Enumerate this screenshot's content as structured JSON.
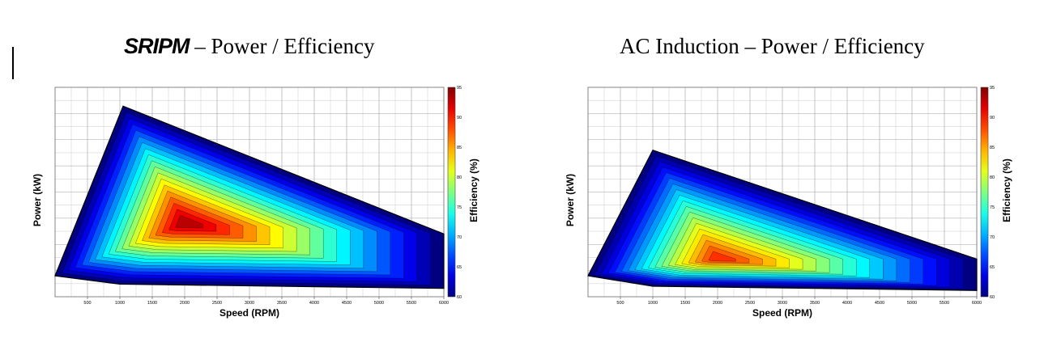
{
  "titles": {
    "left_brand": "SRIPM",
    "left_rest": " – Power / Efficiency",
    "right": "AC Induction – Power / Efficiency"
  },
  "colors": {
    "low": "#00007f",
    "mid": "#9fe76e",
    "high": "#ff2000",
    "grid": "#888888"
  },
  "chart_data": [
    {
      "type": "heatmap",
      "name": "SRIPM",
      "xlabel": "Speed (RPM)",
      "ylabel": "Power (kW)",
      "colorbar_label": "Efficiency (%)",
      "xlim": [
        0,
        6000
      ],
      "x_ticks": [
        "500",
        "1000",
        "1500",
        "2000",
        "2500",
        "3000",
        "3500",
        "4000",
        "4500",
        "5000",
        "5500",
        "6000"
      ],
      "colorbar_ticks": [
        "95",
        "90",
        "85",
        "80",
        "75",
        "70",
        "65",
        "60"
      ],
      "clim": [
        60,
        95
      ],
      "envelope": [
        [
          0,
          0.1
        ],
        [
          1050,
          0.91
        ],
        [
          6000,
          0.3
        ],
        [
          6000,
          0.04
        ],
        [
          1000,
          0.06
        ]
      ],
      "peak_efficiency": 93,
      "peak_location": {
        "speed": 2000,
        "power_fraction": 0.35
      }
    },
    {
      "type": "heatmap",
      "name": "AC Induction",
      "xlabel": "Speed (RPM)",
      "ylabel": "Power (kW)",
      "colorbar_label": "Efficiency (%)",
      "xlim": [
        0,
        6000
      ],
      "x_ticks": [
        "500",
        "1000",
        "1500",
        "2000",
        "2500",
        "3000",
        "3500",
        "4000",
        "4500",
        "5000",
        "5500",
        "6000"
      ],
      "colorbar_ticks": [
        "95",
        "90",
        "85",
        "80",
        "75",
        "70",
        "65",
        "60"
      ],
      "clim": [
        60,
        95
      ],
      "envelope": [
        [
          0,
          0.1
        ],
        [
          1000,
          0.7
        ],
        [
          6000,
          0.18
        ],
        [
          6000,
          0.03
        ],
        [
          1000,
          0.05
        ]
      ],
      "peak_efficiency": 89,
      "peak_location": {
        "speed": 2000,
        "power_fraction": 0.18
      }
    }
  ]
}
